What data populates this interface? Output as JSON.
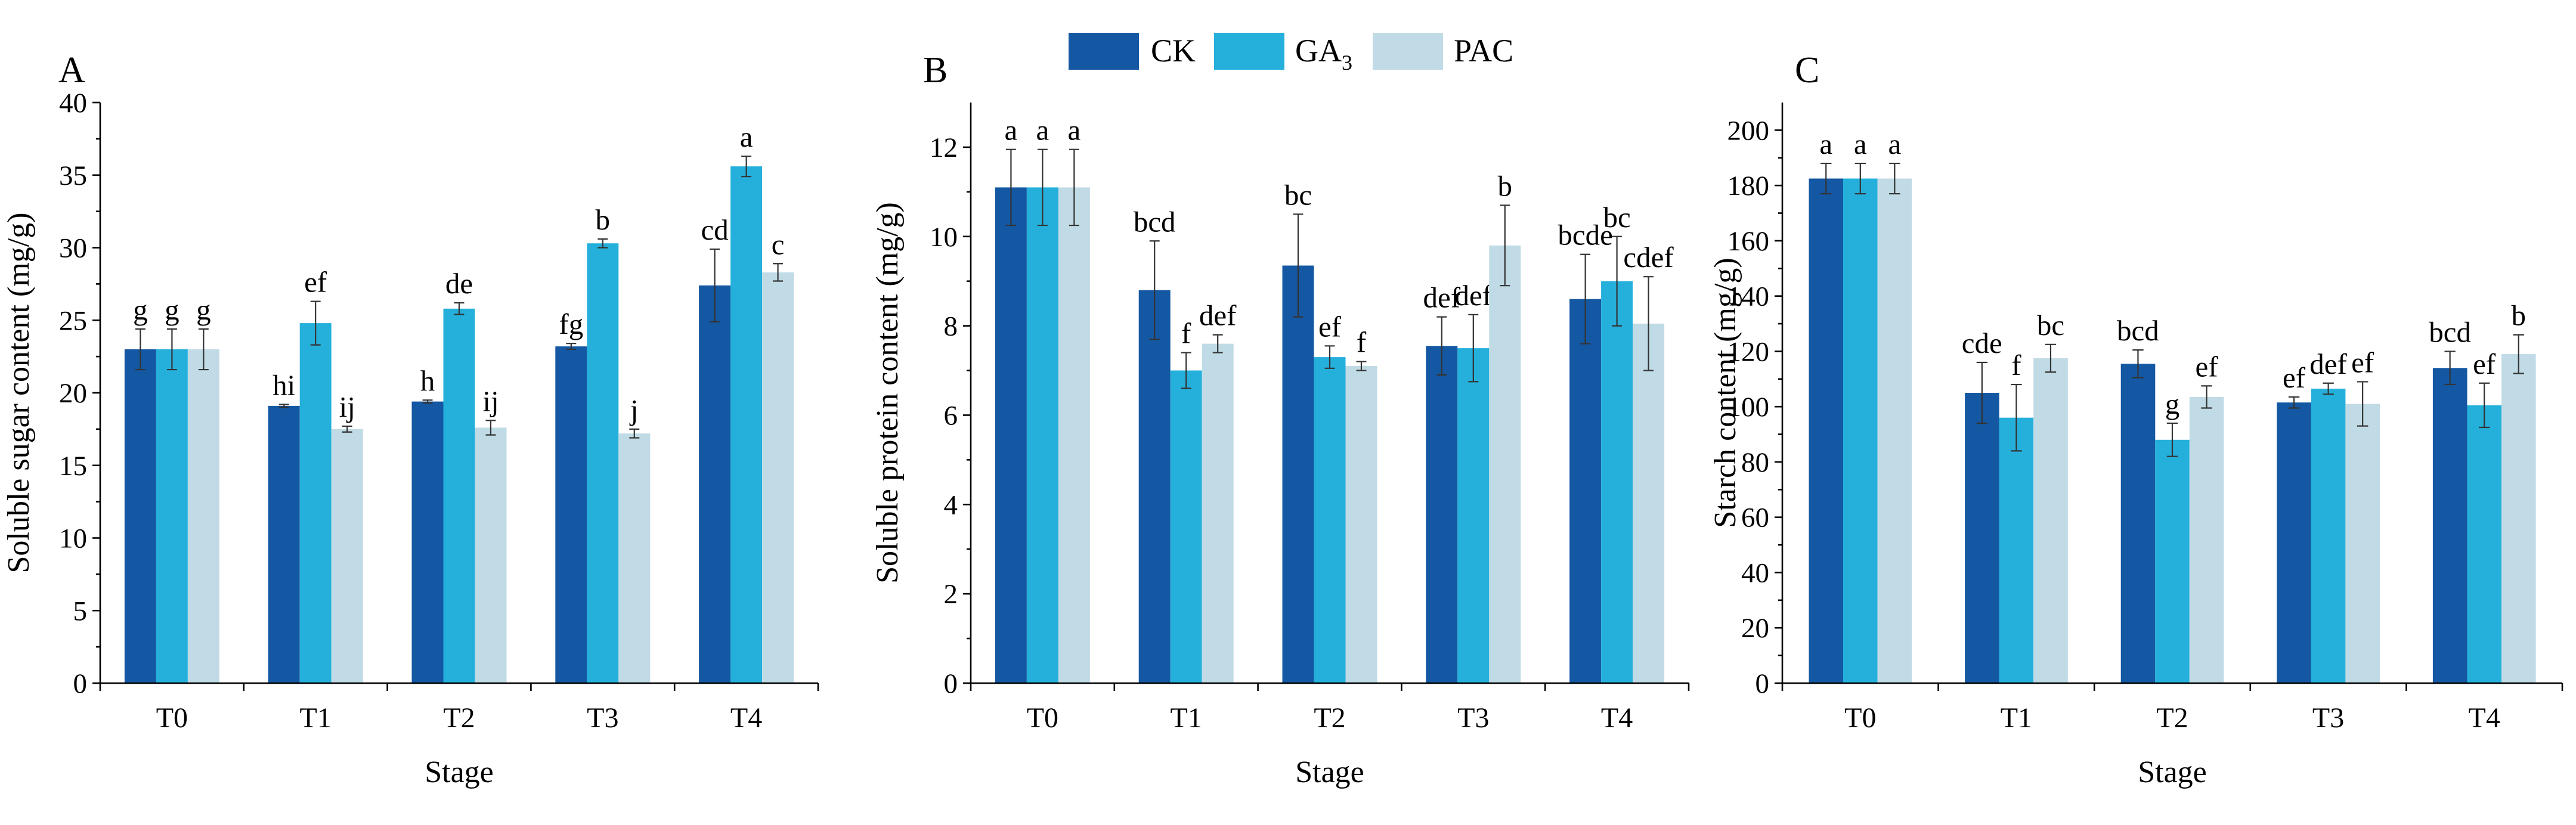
{
  "legend": [
    {
      "name": "CK",
      "color": "#1458a3"
    },
    {
      "name": "GA",
      "sub": "3",
      "color": "#25b0dc"
    },
    {
      "name": "PAC",
      "color": "#c0dbe6"
    }
  ],
  "chart_data": [
    {
      "type": "bar",
      "panel": "A",
      "xlabel": "Stage",
      "ylabel": "Soluble sugar content (mg/g)",
      "ylim": [
        0,
        40
      ],
      "yticks": [
        0,
        5,
        10,
        15,
        20,
        25,
        30,
        35,
        40
      ],
      "categories": [
        "T0",
        "T1",
        "T2",
        "T3",
        "T4"
      ],
      "series": [
        {
          "name": "CK",
          "values": [
            23.0,
            19.1,
            19.4,
            23.2,
            27.4
          ],
          "errors": [
            1.4,
            0.1,
            0.1,
            0.2,
            2.5
          ],
          "labels": [
            "g",
            "hi",
            "h",
            "fg",
            "cd"
          ]
        },
        {
          "name": "GA3",
          "values": [
            23.0,
            24.8,
            25.8,
            30.3,
            35.6
          ],
          "errors": [
            1.4,
            1.5,
            0.4,
            0.3,
            0.7
          ],
          "labels": [
            "g",
            "ef",
            "de",
            "b",
            "a"
          ]
        },
        {
          "name": "PAC",
          "values": [
            23.0,
            17.5,
            17.6,
            17.2,
            28.3
          ],
          "errors": [
            1.4,
            0.2,
            0.5,
            0.3,
            0.6
          ],
          "labels": [
            "g",
            "ij",
            "ij",
            "j",
            "c"
          ]
        }
      ]
    },
    {
      "type": "bar",
      "panel": "B",
      "xlabel": "Stage",
      "ylabel": "Soluble protein content (mg/g)",
      "ylim": [
        0,
        13
      ],
      "yticks": [
        0,
        2,
        4,
        6,
        8,
        10,
        12
      ],
      "categories": [
        "T0",
        "T1",
        "T2",
        "T3",
        "T4"
      ],
      "series": [
        {
          "name": "CK",
          "values": [
            11.1,
            8.8,
            9.35,
            7.55,
            8.6
          ],
          "errors": [
            0.85,
            1.1,
            1.15,
            0.65,
            1.0
          ],
          "labels": [
            "a",
            "bcd",
            "bc",
            "def",
            "bcde"
          ]
        },
        {
          "name": "GA3",
          "values": [
            11.1,
            7.0,
            7.3,
            7.5,
            9.0
          ],
          "errors": [
            0.85,
            0.4,
            0.25,
            0.75,
            1.0
          ],
          "labels": [
            "a",
            "f",
            "ef",
            "def",
            "bc"
          ]
        },
        {
          "name": "PAC",
          "values": [
            11.1,
            7.6,
            7.1,
            9.8,
            8.05
          ],
          "errors": [
            0.85,
            0.2,
            0.1,
            0.9,
            1.05
          ],
          "labels": [
            "a",
            "def",
            "f",
            "b",
            "cdef"
          ]
        }
      ]
    },
    {
      "type": "bar",
      "panel": "C",
      "xlabel": "Stage",
      "ylabel": "Starch content (mg/g)",
      "ylim": [
        0,
        210
      ],
      "yticks": [
        0,
        20,
        40,
        60,
        80,
        100,
        120,
        140,
        160,
        180,
        200
      ],
      "categories": [
        "T0",
        "T1",
        "T2",
        "T3",
        "T4"
      ],
      "series": [
        {
          "name": "CK",
          "values": [
            182.5,
            105,
            115.5,
            101.5,
            114
          ],
          "errors": [
            5.5,
            11,
            5,
            2,
            6
          ],
          "labels": [
            "a",
            "cde",
            "bcd",
            "ef",
            "bcd"
          ]
        },
        {
          "name": "GA3",
          "values": [
            182.5,
            96,
            88,
            106.5,
            100.5
          ],
          "errors": [
            5.5,
            12,
            6,
            2,
            8
          ],
          "labels": [
            "a",
            "f",
            "g",
            "def",
            "ef"
          ]
        },
        {
          "name": "PAC",
          "values": [
            182.5,
            117.5,
            103.5,
            101,
            119
          ],
          "errors": [
            5.5,
            5,
            4,
            8,
            7
          ],
          "labels": [
            "a",
            "bc",
            "ef",
            "ef",
            "b"
          ]
        }
      ]
    }
  ]
}
